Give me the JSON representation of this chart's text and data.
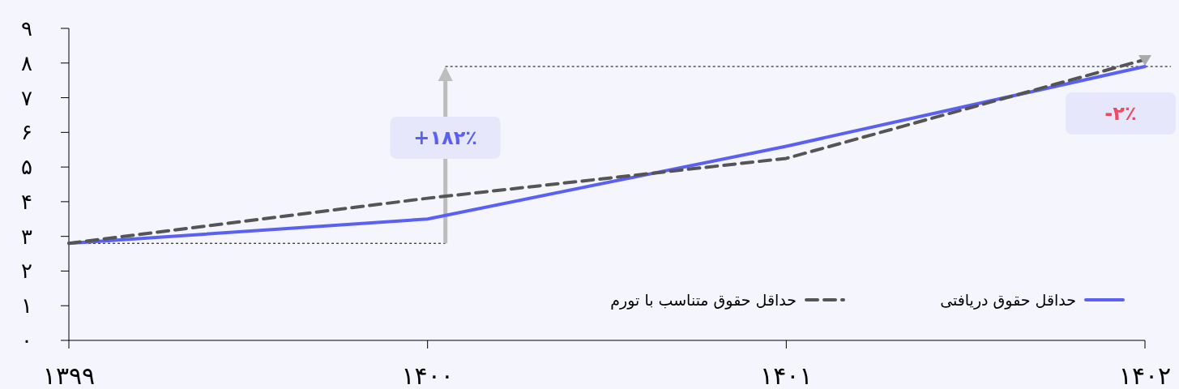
{
  "chart_data": {
    "type": "line",
    "x": [
      1399,
      1400,
      1401,
      1402
    ],
    "series": [
      {
        "name": "حداقل حقوق دریافتی",
        "color": "#5a60f3",
        "values": [
          2.8,
          3.5,
          5.6,
          7.9
        ],
        "line_style": "solid"
      },
      {
        "name": "حداقل حقوق متناسب با تورم",
        "color": "#555555",
        "values": [
          2.8,
          4.1,
          5.25,
          8.1
        ],
        "line_style": "dashed"
      }
    ],
    "xlim": [
      1399,
      1402
    ],
    "xticks": [
      {
        "value": 1399,
        "label": "۱۳۹۹"
      },
      {
        "value": 1400,
        "label": "۱۴۰۰"
      },
      {
        "value": 1401,
        "label": "۱۴۰۱"
      },
      {
        "value": 1402,
        "label": "۱۴۰۲"
      }
    ],
    "ylim": [
      0,
      9
    ],
    "yticks": [
      {
        "value": 0,
        "label": "۰"
      },
      {
        "value": 1,
        "label": "۱"
      },
      {
        "value": 2,
        "label": "۲"
      },
      {
        "value": 3,
        "label": "۳"
      },
      {
        "value": 4,
        "label": "۴"
      },
      {
        "value": 5,
        "label": "۵"
      },
      {
        "value": 6,
        "label": "۶"
      },
      {
        "value": 7,
        "label": "۷"
      },
      {
        "value": 8,
        "label": "۸"
      },
      {
        "value": 9,
        "label": "۹"
      }
    ],
    "ref_lines": [
      {
        "axis": "y",
        "value": 2.8,
        "color": "#000000",
        "line_style": "dotted"
      },
      {
        "axis": "y",
        "value": 7.9,
        "color": "#000000",
        "line_style": "dotted"
      }
    ],
    "annotations": [
      "+۱۸۲٪",
      "-۲٪"
    ],
    "legend": "bottom right",
    "grid": false,
    "marker": "none"
  }
}
